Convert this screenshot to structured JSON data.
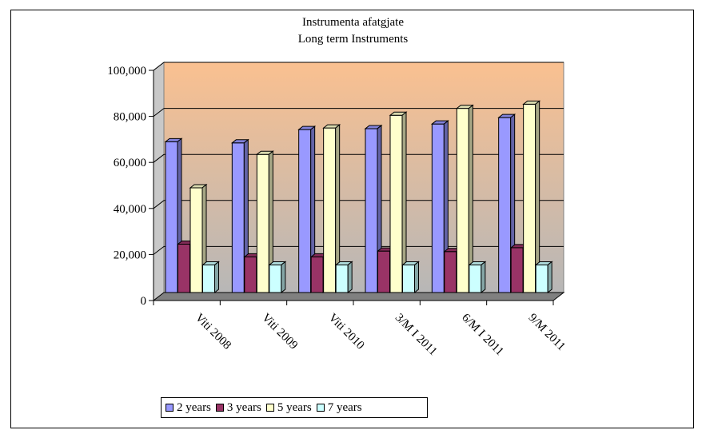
{
  "chart_data": {
    "type": "bar",
    "title": "Instrumenta afatgjate",
    "subtitle": "Long term Instruments",
    "categories": [
      "Viti 2008",
      "Viti 2009",
      "Viti 2010",
      "3/M  I 2011",
      "6/M  I 2011",
      "9/M 2011"
    ],
    "series": [
      {
        "name": "2 years",
        "color": "#9999ff",
        "values": [
          65500,
          65000,
          70800,
          71200,
          73200,
          76000
        ]
      },
      {
        "name": "3 years",
        "color": "#993366",
        "values": [
          21000,
          15500,
          15500,
          18000,
          17800,
          19500
        ]
      },
      {
        "name": "5 years",
        "color": "#ffffcc",
        "values": [
          45500,
          60000,
          71500,
          77000,
          80000,
          81800
        ]
      },
      {
        "name": "7 years",
        "color": "#ccffff",
        "values": [
          12000,
          12000,
          12000,
          12000,
          12000,
          12000
        ]
      }
    ],
    "y_ticks": [
      "0",
      "20,000",
      "40,000",
      "60,000",
      "80,000",
      "100,000"
    ],
    "ylim": [
      0,
      100000
    ],
    "grid": true,
    "legend_position": "bottom",
    "plot_gradient": [
      "#fac090",
      "#b7b7b7"
    ]
  }
}
